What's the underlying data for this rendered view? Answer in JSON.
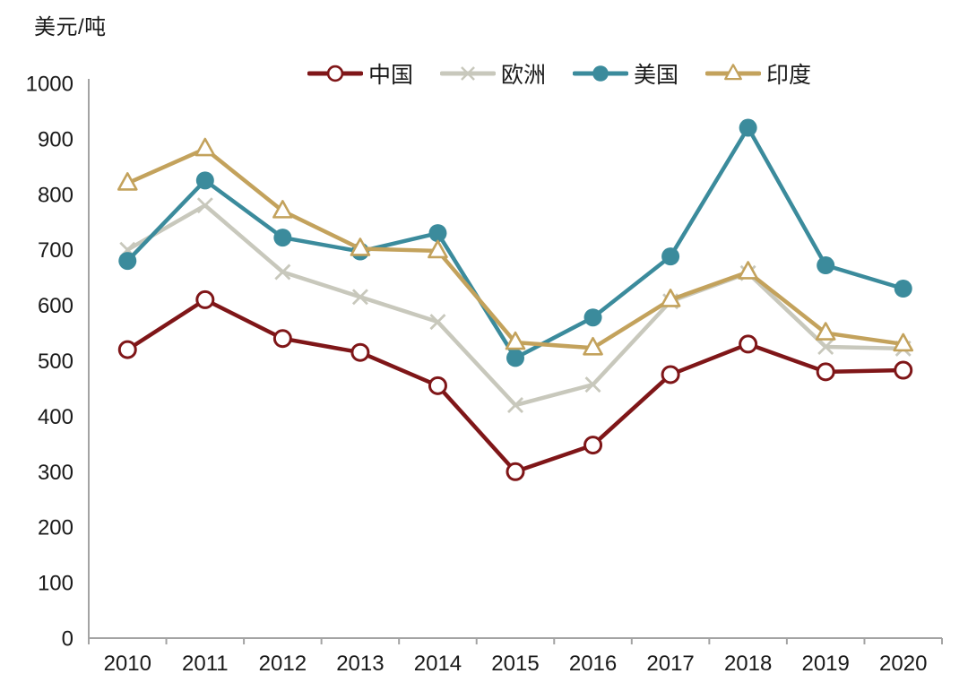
{
  "chart_data": {
    "type": "line",
    "title": "",
    "ylabel": "美元/吨",
    "xlabel": "",
    "ylim": [
      0,
      1000
    ],
    "ytick_step": 100,
    "grid": false,
    "legend_position": "top-center",
    "background_color": "#ffffff",
    "axis_color": "#a3a3a3",
    "text_color": "#1a1a1a",
    "categories": [
      "2010",
      "2011",
      "2012",
      "2013",
      "2014",
      "2015",
      "2016",
      "2017",
      "2018",
      "2019",
      "2020"
    ],
    "series": [
      {
        "key": "china",
        "name": "中国",
        "color": "#7F1618",
        "marker": "open-circle",
        "values": [
          520,
          610,
          540,
          515,
          455,
          300,
          348,
          475,
          530,
          480,
          483
        ]
      },
      {
        "key": "europe",
        "name": "欧洲",
        "color": "#C8C8BC",
        "marker": "x",
        "values": [
          700,
          780,
          660,
          615,
          570,
          420,
          457,
          607,
          658,
          525,
          522
        ]
      },
      {
        "key": "us",
        "name": "美国",
        "color": "#3B8B9C",
        "marker": "filled-circle",
        "values": [
          680,
          825,
          722,
          697,
          730,
          505,
          578,
          688,
          920,
          672,
          630
        ]
      },
      {
        "key": "india",
        "name": "印度",
        "color": "#C3A25C",
        "marker": "open-triangle",
        "values": [
          820,
          882,
          770,
          702,
          698,
          533,
          523,
          610,
          660,
          550,
          530
        ]
      }
    ]
  }
}
